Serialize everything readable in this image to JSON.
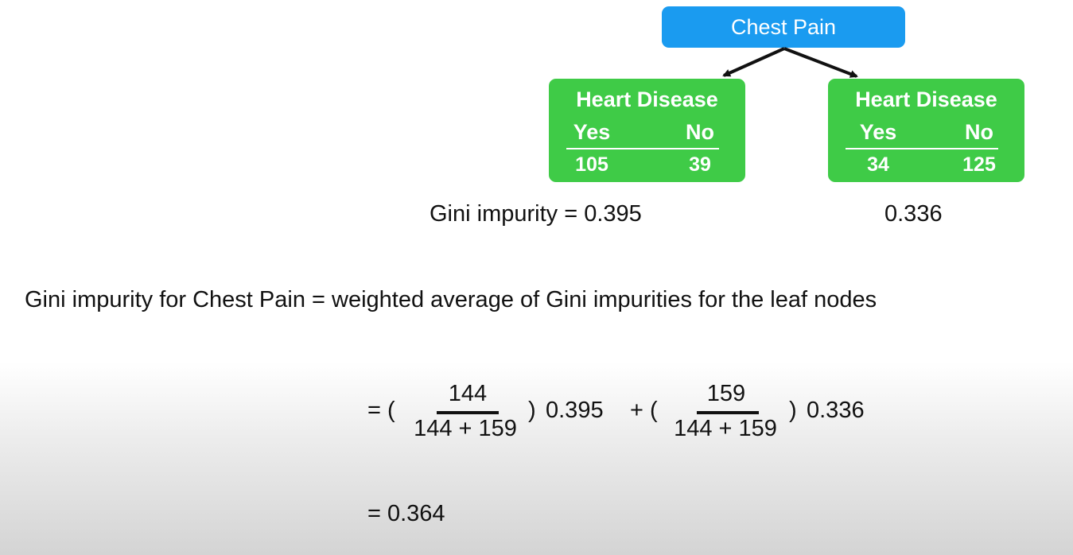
{
  "root": {
    "label": "Chest Pain"
  },
  "leaves": [
    {
      "title": "Heart Disease",
      "yes_label": "Yes",
      "no_label": "No",
      "yes_value": "105",
      "no_value": "39"
    },
    {
      "title": "Heart Disease",
      "yes_label": "Yes",
      "no_label": "No",
      "yes_value": "34",
      "no_value": "125"
    }
  ],
  "gini_left": "Gini impurity = 0.395",
  "gini_right": "0.336",
  "statement": "Gini impurity for Chest Pain = weighted average of Gini impurities for the leaf nodes",
  "formula": {
    "equals1": "= (",
    "frac1_num": "144",
    "frac1_den": "144 + 159",
    "close1": ")",
    "value1": "0.395",
    "plus": "+ (",
    "frac2_num": "159",
    "frac2_den": "144 + 159",
    "close2": ")",
    "value2": "0.336"
  },
  "result": "= 0.364",
  "colors": {
    "root": "#1a9bf0",
    "leaf": "#3fcb47"
  }
}
